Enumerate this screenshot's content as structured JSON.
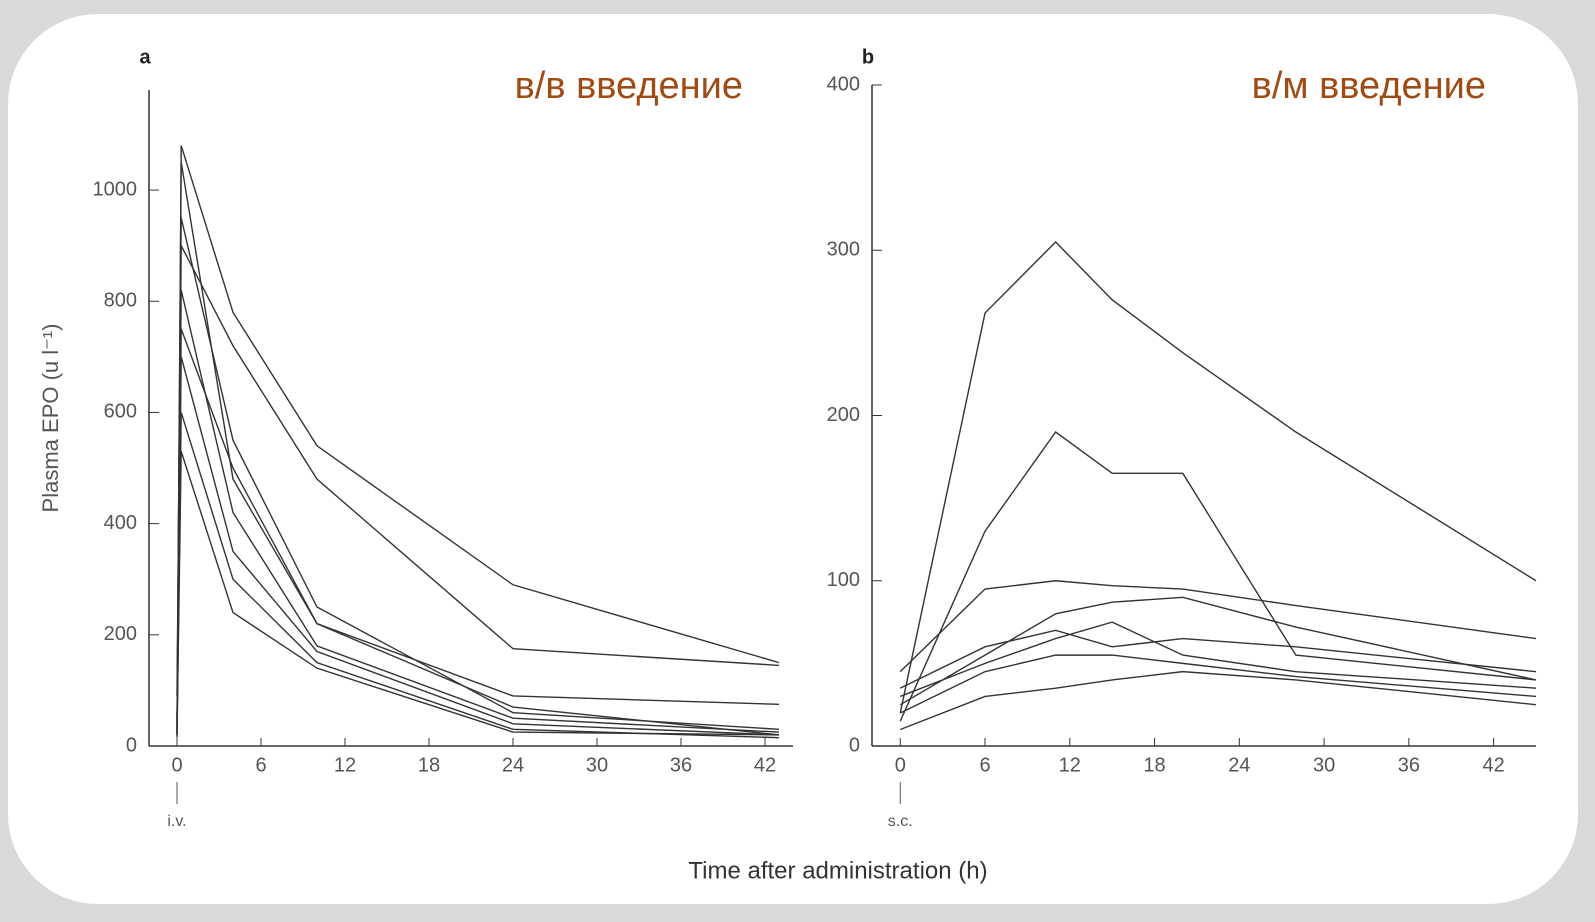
{
  "chart_data": [
    {
      "type": "line",
      "panel_label": "a",
      "annotation": "в/в введение",
      "dose_label": "i.v.",
      "ylabel": "Plasma EPO (u l⁻¹)",
      "color": "#333333",
      "x": [
        0,
        0.3,
        4,
        10,
        24,
        43
      ],
      "xlim": [
        -2,
        44
      ],
      "xticks": [
        0,
        6,
        12,
        18,
        24,
        30,
        36,
        42
      ],
      "ylim": [
        0,
        1180
      ],
      "yticks": [
        0,
        200,
        400,
        600,
        800,
        1000
      ],
      "series": [
        {
          "values": [
            40,
            1080,
            780,
            540,
            290,
            150
          ]
        },
        {
          "values": [
            30,
            900,
            720,
            480,
            175,
            145
          ]
        },
        {
          "values": [
            20,
            1050,
            480,
            220,
            70,
            20
          ]
        },
        {
          "values": [
            25,
            820,
            420,
            180,
            50,
            25
          ]
        },
        {
          "values": [
            35,
            700,
            350,
            170,
            40,
            20
          ]
        },
        {
          "values": [
            15,
            600,
            300,
            150,
            30,
            15
          ]
        },
        {
          "values": [
            50,
            750,
            500,
            220,
            90,
            75
          ]
        },
        {
          "values": [
            20,
            530,
            240,
            140,
            25,
            20
          ]
        },
        {
          "values": [
            90,
            950,
            550,
            250,
            60,
            30
          ]
        }
      ]
    },
    {
      "type": "line",
      "panel_label": "b",
      "annotation": "в/м введение",
      "dose_label": "s.c.",
      "color": "#333333",
      "x": [
        0,
        6,
        11,
        15,
        20,
        28,
        45
      ],
      "xlim": [
        -2,
        45
      ],
      "xticks": [
        0,
        6,
        12,
        18,
        24,
        30,
        36,
        42
      ],
      "ylim": [
        0,
        400
      ],
      "yticks": [
        0,
        100,
        200,
        300,
        400
      ],
      "series": [
        {
          "values": [
            20,
            262,
            305,
            270,
            238,
            190,
            100
          ]
        },
        {
          "values": [
            15,
            130,
            190,
            165,
            165,
            55,
            40
          ]
        },
        {
          "values": [
            45,
            95,
            100,
            97,
            95,
            85,
            65
          ]
        },
        {
          "values": [
            25,
            55,
            80,
            87,
            90,
            72,
            40
          ]
        },
        {
          "values": [
            30,
            50,
            65,
            75,
            55,
            45,
            35
          ]
        },
        {
          "values": [
            20,
            45,
            55,
            55,
            50,
            42,
            30
          ]
        },
        {
          "values": [
            10,
            30,
            35,
            40,
            45,
            40,
            25
          ]
        },
        {
          "values": [
            35,
            60,
            70,
            60,
            65,
            60,
            45
          ]
        }
      ]
    }
  ],
  "common_xlabel": "Time after administration (h)"
}
